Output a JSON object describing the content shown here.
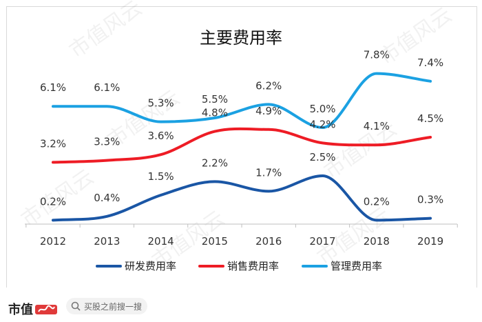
{
  "colors": {
    "rd": "#1a56a5",
    "sales": "#ee1c25",
    "mgmt": "#1ba1e2",
    "axis": "#bfbfbf",
    "watermark": "#000000"
  },
  "watermark": {
    "text": "市值风云"
  },
  "footer": {
    "brand": "市值",
    "search_placeholder": "买股之前搜一搜",
    "search_icon": "search-icon"
  },
  "chart_data": {
    "type": "line",
    "title": "主要费用率",
    "categories": [
      "2012",
      "2013",
      "2014",
      "2015",
      "2016",
      "2017",
      "2018",
      "2019"
    ],
    "ylim": [
      0,
      9
    ],
    "grid": false,
    "legend_position": "bottom",
    "series": [
      {
        "key": "rd",
        "name": "研发费用率",
        "values": [
          0.2,
          0.4,
          1.5,
          2.2,
          1.7,
          2.5,
          0.2,
          0.3
        ],
        "labels": [
          "0.2%",
          "0.4%",
          "1.5%",
          "2.2%",
          "1.7%",
          "2.5%",
          "0.2%",
          "0.3%"
        ]
      },
      {
        "key": "sales",
        "name": "销售费用率",
        "values": [
          3.2,
          3.3,
          3.6,
          4.8,
          4.9,
          4.2,
          4.1,
          4.5
        ],
        "labels": [
          "3.2%",
          "3.3%",
          "3.6%",
          "4.8%",
          "4.9%",
          "4.2%",
          "4.1%",
          "4.5%"
        ]
      },
      {
        "key": "mgmt",
        "name": "管理费用率",
        "values": [
          6.1,
          6.1,
          5.3,
          5.5,
          6.2,
          5.0,
          7.8,
          7.4
        ],
        "labels": [
          "6.1%",
          "6.1%",
          "5.3%",
          "5.5%",
          "6.2%",
          "5.0%",
          "7.8%",
          "7.4%"
        ]
      }
    ]
  }
}
